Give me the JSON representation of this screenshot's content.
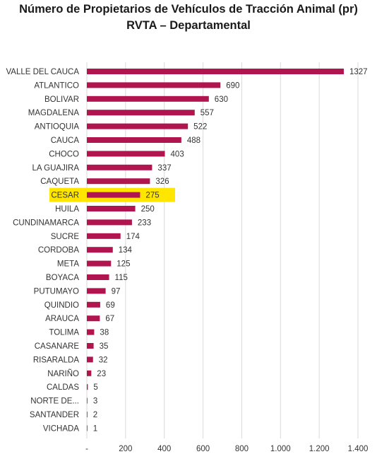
{
  "title_line1": "Número de Propietarios de Vehículos de Tracción Animal (pr)",
  "title_line2": "RVTA – Departamental",
  "colors": {
    "bar": "#b0154f",
    "highlight": "#ffe600",
    "grid": "#d9d9d9",
    "text": "#333333"
  },
  "chart_data": {
    "type": "bar",
    "orientation": "horizontal",
    "title": "Número de Propietarios de Vehículos de Tracción Animal (pr) RVTA – Departamental",
    "categories": [
      "VALLE DEL CAUCA",
      "ATLANTICO",
      "BOLIVAR",
      "MAGDALENA",
      "ANTIOQUIA",
      "CAUCA",
      "CHOCO",
      "LA GUAJIRA",
      "CAQUETA",
      "CESAR",
      "HUILA",
      "CUNDINAMARCA",
      "SUCRE",
      "CORDOBA",
      "META",
      "BOYACA",
      "PUTUMAYO",
      "QUINDIO",
      "ARAUCA",
      "TOLIMA",
      "CASANARE",
      "RISARALDA",
      "NARIÑO",
      "CALDAS",
      "NORTE DE...",
      "SANTANDER",
      "VICHADA"
    ],
    "values": [
      1327,
      690,
      630,
      557,
      522,
      488,
      403,
      337,
      326,
      275,
      250,
      233,
      174,
      134,
      125,
      115,
      97,
      69,
      67,
      38,
      35,
      32,
      23,
      5,
      3,
      2,
      1
    ],
    "highlighted": "CESAR",
    "xlim": [
      0,
      1400
    ],
    "xticks": [
      0,
      200,
      400,
      600,
      800,
      1000,
      1200,
      1400
    ],
    "xtick_labels": [
      "-",
      "200",
      "400",
      "600",
      "800",
      "1.000",
      "1.200",
      "1.400"
    ],
    "grid": "vertical",
    "legend": "none",
    "xlabel": "",
    "ylabel": ""
  }
}
